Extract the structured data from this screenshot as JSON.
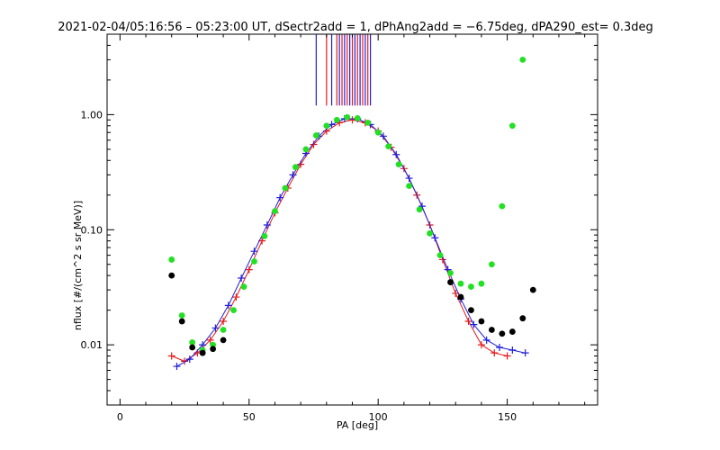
{
  "chart_data": {
    "type": "scatter",
    "title": "2021-02-04/05:16:56 – 05:23:00 UT, dSectr2add = 1, dPhAng2add = −6.75deg, dPA290_est=   0.3deg",
    "xlabel": "PA [deg]",
    "ylabel": "nflux [#/(cm^2 s sr MeV)]",
    "xlim": [
      -5,
      185
    ],
    "ylim": [
      0.003,
      5.0
    ],
    "yscale": "log",
    "x_ticks": [
      0,
      50,
      100,
      150
    ],
    "x_tick_labels": [
      "0",
      "50",
      "100",
      "150"
    ],
    "y_ticks": [
      0.01,
      0.1,
      1.0
    ],
    "y_tick_labels": [
      "0.01",
      "0.10",
      "1.00"
    ],
    "grid": false,
    "legend": "none",
    "colors": {
      "red_series": "#e41a1c",
      "blue_series": "#1f1fd8",
      "green_fit": "#22e022",
      "black_fit": "#000000",
      "axes": "#000000"
    },
    "series": [
      {
        "marker": "plus-line",
        "color": "#e41a1c",
        "x": [
          20,
          25,
          30,
          35,
          40,
          45,
          50,
          55,
          60,
          65,
          70,
          75,
          80,
          85,
          90,
          95,
          100,
          105,
          110,
          115,
          120,
          125,
          130,
          135,
          140,
          145,
          150
        ],
        "y": [
          0.008,
          0.0072,
          0.0085,
          0.011,
          0.016,
          0.026,
          0.045,
          0.08,
          0.14,
          0.23,
          0.37,
          0.55,
          0.72,
          0.85,
          0.9,
          0.85,
          0.72,
          0.52,
          0.34,
          0.2,
          0.11,
          0.055,
          0.028,
          0.016,
          0.01,
          0.0085,
          0.008
        ]
      },
      {
        "marker": "plus-line",
        "color": "#1f1fd8",
        "x": [
          22,
          27,
          32,
          37,
          42,
          47,
          52,
          57,
          62,
          67,
          72,
          77,
          82,
          87,
          92,
          97,
          102,
          107,
          112,
          117,
          122,
          127,
          132,
          137,
          142,
          147,
          152,
          157
        ],
        "y": [
          0.0065,
          0.0075,
          0.01,
          0.014,
          0.022,
          0.038,
          0.065,
          0.11,
          0.19,
          0.3,
          0.46,
          0.65,
          0.82,
          0.92,
          0.92,
          0.82,
          0.65,
          0.45,
          0.28,
          0.16,
          0.085,
          0.045,
          0.025,
          0.015,
          0.011,
          0.0095,
          0.009,
          0.0085
        ]
      },
      {
        "marker": "dot",
        "color": "#22e022",
        "x": [
          20,
          24,
          28,
          32,
          36,
          40,
          44,
          48,
          52,
          56,
          60,
          64,
          68,
          72,
          76,
          80,
          84,
          88,
          92,
          96,
          100,
          104,
          108,
          112,
          116,
          120,
          124,
          128,
          132,
          136,
          140,
          144,
          148,
          152,
          156
        ],
        "y": [
          0.055,
          0.018,
          0.0105,
          0.009,
          0.01,
          0.0135,
          0.02,
          0.032,
          0.053,
          0.088,
          0.145,
          0.23,
          0.35,
          0.5,
          0.66,
          0.8,
          0.9,
          0.95,
          0.93,
          0.85,
          0.7,
          0.53,
          0.37,
          0.24,
          0.15,
          0.093,
          0.06,
          0.042,
          0.034,
          0.032,
          0.034,
          0.05,
          0.16,
          0.8,
          3.0
        ]
      },
      {
        "marker": "dot",
        "color": "#000000",
        "x": [
          20,
          24,
          28,
          32,
          36,
          40,
          128,
          132,
          136,
          140,
          144,
          148,
          152,
          156,
          160
        ],
        "y": [
          0.04,
          0.016,
          0.0095,
          0.0085,
          0.0092,
          0.011,
          0.035,
          0.026,
          0.02,
          0.016,
          0.0135,
          0.0125,
          0.013,
          0.017,
          0.03
        ]
      }
    ],
    "vertical_markers": {
      "color_order": [
        "#1f1fd8",
        "#e41a1c"
      ],
      "x": [
        76,
        80,
        82,
        84,
        85,
        86,
        87,
        88,
        89,
        90,
        91,
        92,
        93,
        94,
        95,
        96,
        97
      ],
      "y_from": 1.2,
      "y_to": 5.0
    }
  }
}
